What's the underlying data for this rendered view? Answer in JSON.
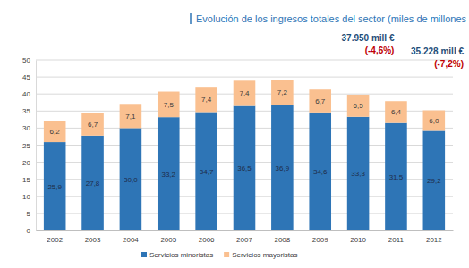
{
  "chart_data": {
    "type": "bar",
    "title": "Evolución de los ingresos totales del sector (miles de millones de euros)",
    "categories": [
      "2002",
      "2003",
      "2004",
      "2005",
      "2006",
      "2007",
      "2008",
      "2009",
      "2010",
      "2011",
      "2012"
    ],
    "series": [
      {
        "name": "Servicios minoristas",
        "color": "#2e75b6",
        "values": [
          25.9,
          27.8,
          30.0,
          33.2,
          34.7,
          36.5,
          36.9,
          34.6,
          33.3,
          31.5,
          29.2
        ],
        "value_labels": [
          "25,9",
          "27,8",
          "30,0",
          "33,2",
          "34,7",
          "36,5",
          "36,9",
          "34,6",
          "33,3",
          "31,5",
          "29,2"
        ]
      },
      {
        "name": "Servicios mayoristas",
        "color": "#fac090",
        "values": [
          6.2,
          6.7,
          7.1,
          7.5,
          7.4,
          7.4,
          7.2,
          6.7,
          6.5,
          6.4,
          6.0
        ],
        "value_labels": [
          "6,2",
          "6,7",
          "7,1",
          "7,5",
          "7,4",
          "7,4",
          "7,2",
          "6,7",
          "6,5",
          "6,4",
          "6,0"
        ]
      }
    ],
    "stacked": true,
    "data_labels": true,
    "ylim": [
      0,
      50
    ],
    "yticks": [
      0,
      5,
      10,
      15,
      20,
      25,
      30,
      35,
      40,
      45,
      50
    ],
    "grid": true,
    "legend": "bottom",
    "annotations": [
      {
        "x": "2011",
        "text": "37.950 mill €",
        "color": "#1f4e79"
      },
      {
        "x": "2011",
        "text": "(-4,6%)",
        "color": "#c00000"
      },
      {
        "x": "2012",
        "text": "35.228 mill €",
        "color": "#1f4e79"
      },
      {
        "x": "2012",
        "text": "(-7,2%)",
        "color": "#c00000"
      }
    ]
  }
}
